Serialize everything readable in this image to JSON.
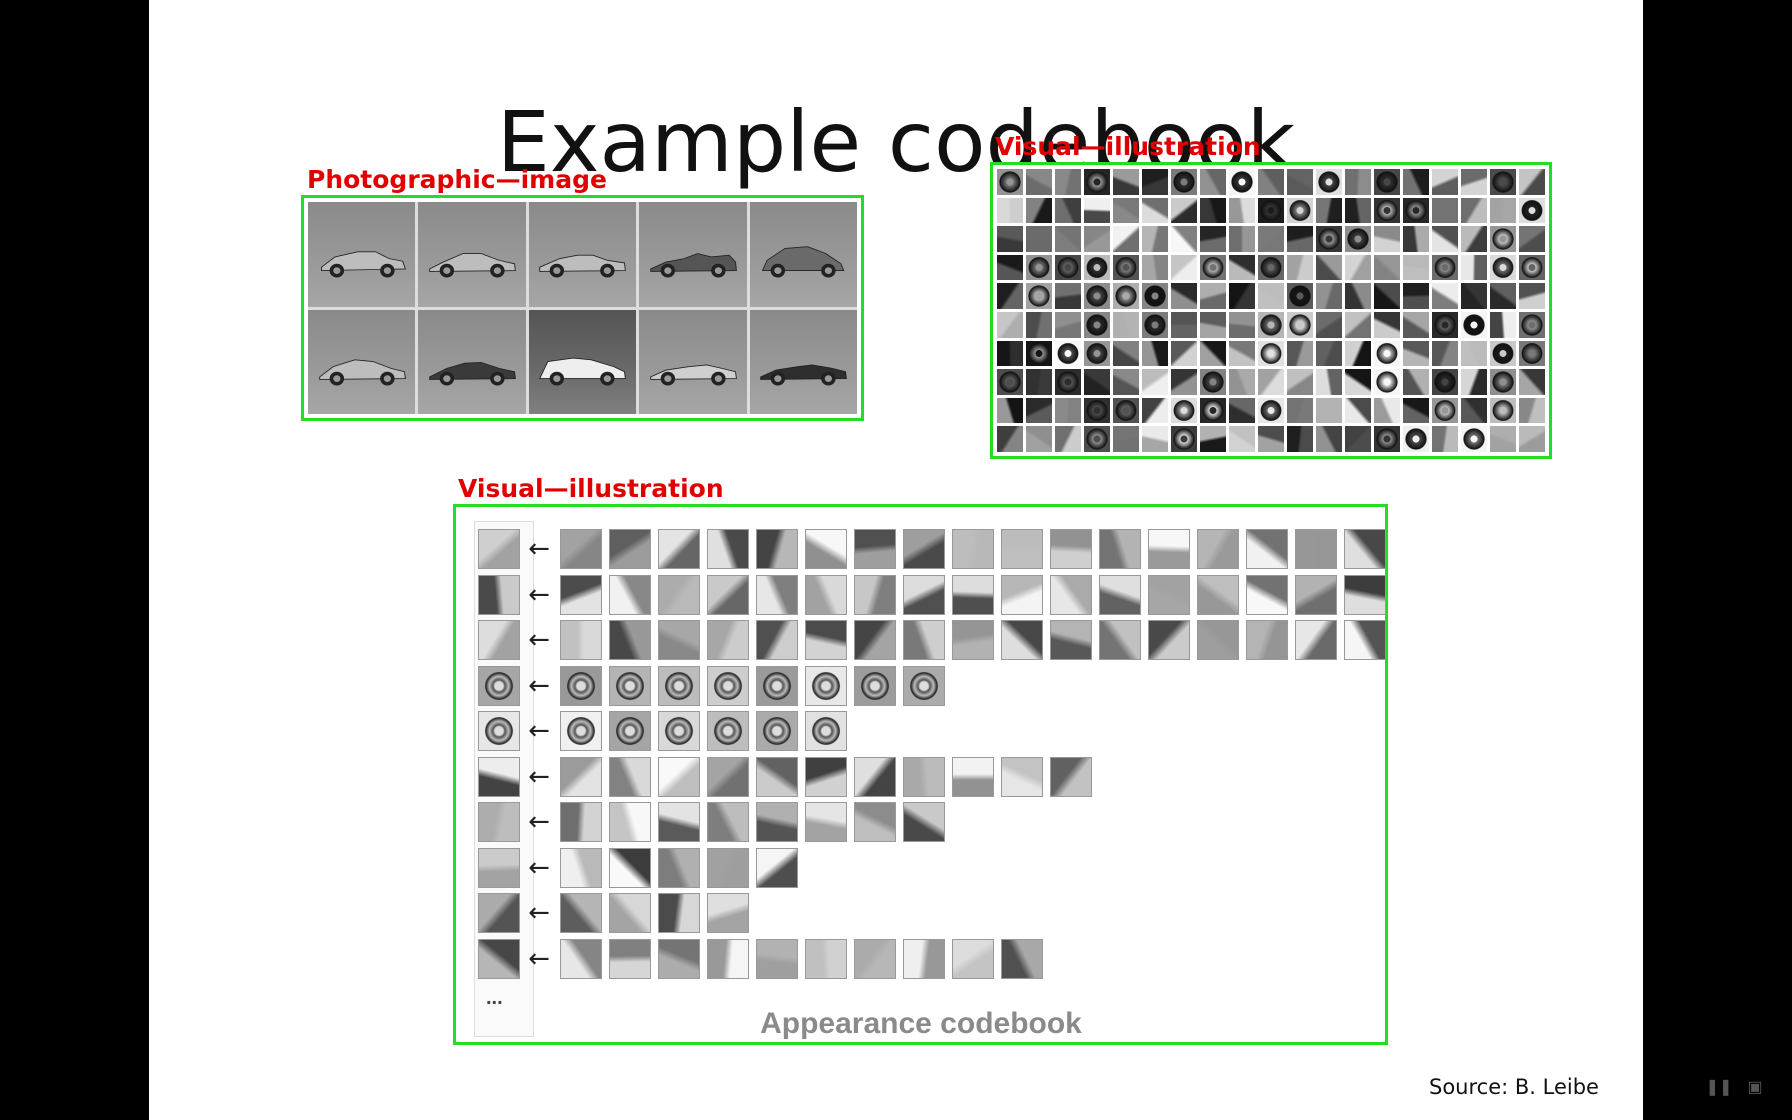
{
  "slide": {
    "title": "Example codebook",
    "source": "Source: B. Leibe",
    "codebook_caption": "Appearance codebook",
    "ellipsis": "...",
    "arrow_glyph": "←"
  },
  "annotations": {
    "photo_label": "Photographic—image",
    "visual_label_top": "Visual—illustration",
    "visual_label_bottom": "Visual—illustration",
    "box_color": "#22dd22",
    "label_color": "#e00000"
  },
  "photo_grid": {
    "cars": [
      "sedan",
      "sports-coupe",
      "muscle-car",
      "race-car",
      "beetle",
      "coupe",
      "dark-sports-car",
      "white-supercar",
      "convertible",
      "roadster"
    ]
  },
  "codebook": {
    "row_member_counts": [
      17,
      17,
      17,
      8,
      6,
      11,
      8,
      5,
      4,
      10
    ]
  },
  "player": {
    "pause_icon": "pause-icon",
    "fullscreen_icon": "fullscreen-icon"
  }
}
